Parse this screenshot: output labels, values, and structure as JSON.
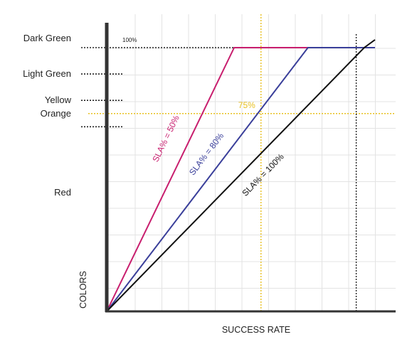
{
  "chart_data": {
    "type": "line",
    "xlabel": "SUCCESS RATE",
    "ylabel": "COLORS",
    "xlim": [
      0,
      100
    ],
    "ylim": [
      0,
      100
    ],
    "grid": true,
    "y_categories": [
      {
        "label": "Dark Green",
        "y": 100
      },
      {
        "label": "Light Green",
        "y": 90
      },
      {
        "label": "Yellow",
        "y": 80
      },
      {
        "label": "Orange",
        "y": 75
      },
      {
        "label": "Red",
        "y": 45
      }
    ],
    "threshold_lines_y": [
      100,
      90,
      80,
      70
    ],
    "top_label": "100%",
    "reference": {
      "label": "75%",
      "x": 57.5,
      "y": 75,
      "color": "#e8c020"
    },
    "series": [
      {
        "name": "SLA% = 50%",
        "color": "#c81e6e",
        "x": [
          0,
          47.5,
          75,
          100
        ],
        "y": [
          0,
          100,
          100,
          100
        ],
        "label_x": 23,
        "label_y": 65
      },
      {
        "name": "SLA% = 80%",
        "color": "#3a3f9a",
        "x": [
          0,
          75,
          100
        ],
        "y": [
          0,
          100,
          100
        ],
        "label_x": 38,
        "label_y": 59
      },
      {
        "name": "SLA% = 100%",
        "color": "#111111",
        "x": [
          0,
          96,
          100
        ],
        "y": [
          0,
          100,
          103
        ],
        "label_x": 59,
        "label_y": 51
      }
    ],
    "vertical_marker_x": 93
  }
}
